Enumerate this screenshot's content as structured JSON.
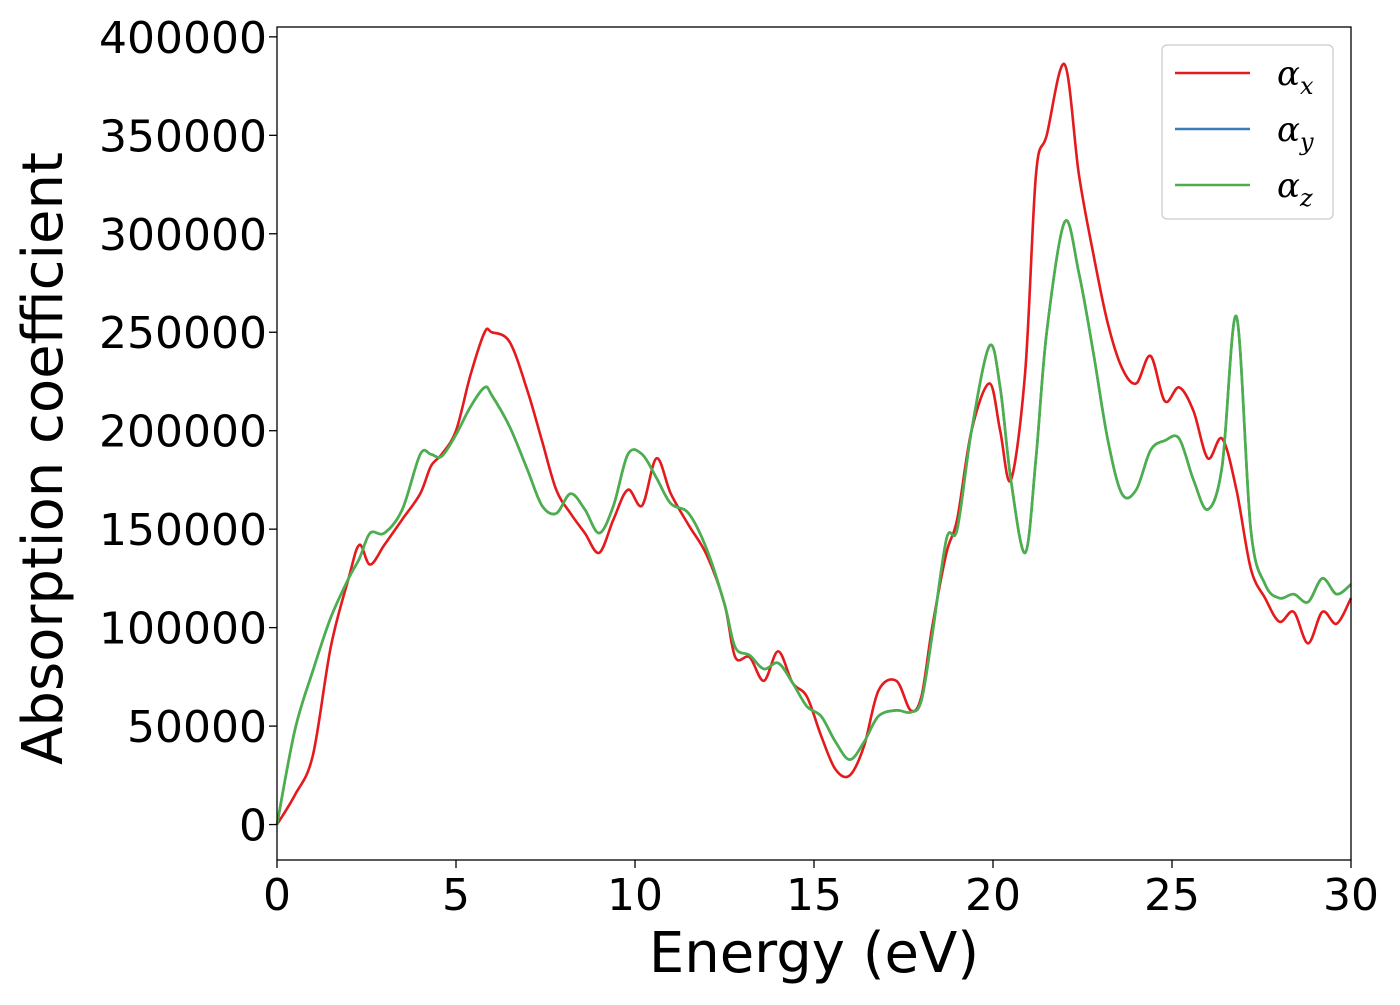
{
  "chart_data": {
    "type": "line",
    "title": "",
    "xlabel": "Energy (eV)",
    "ylabel": "Absorption coefficient",
    "xlim": [
      0,
      30
    ],
    "ylim": [
      -18000,
      405000
    ],
    "xticks": [
      "0",
      "5",
      "10",
      "15",
      "20",
      "25",
      "30"
    ],
    "yticks": [
      "0",
      "50000",
      "100000",
      "150000",
      "200000",
      "250000",
      "300000",
      "350000",
      "400000"
    ],
    "grid": false,
    "legend_position": "top-right",
    "series": [
      {
        "name": "α_x",
        "legend_base": "α",
        "legend_sub": "x",
        "color": "#e41a1c",
        "x": [
          0,
          0.5,
          1,
          1.5,
          2,
          2.3,
          2.6,
          3,
          3.5,
          4,
          4.3,
          4.6,
          5,
          5.4,
          5.8,
          6,
          6.5,
          7,
          7.4,
          7.8,
          8.2,
          8.6,
          9,
          9.4,
          9.8,
          10.2,
          10.6,
          11,
          11.5,
          12,
          12.5,
          12.8,
          13.2,
          13.6,
          14,
          14.4,
          14.8,
          15.2,
          15.6,
          16,
          16.4,
          16.8,
          17.3,
          17.7,
          18,
          18.3,
          18.7,
          19,
          19.4,
          19.9,
          20.2,
          20.5,
          20.9,
          21.2,
          21.5,
          22,
          22.4,
          22.8,
          23.2,
          23.6,
          24,
          24.4,
          24.8,
          25.2,
          25.6,
          26,
          26.4,
          26.8,
          27.2,
          27.6,
          28,
          28.4,
          28.8,
          29.2,
          29.6,
          30
        ],
        "y": [
          0,
          15000,
          35000,
          90000,
          125000,
          142000,
          132000,
          142000,
          155000,
          168000,
          182000,
          188000,
          200000,
          228000,
          250000,
          250000,
          245000,
          220000,
          195000,
          170000,
          158000,
          148000,
          138000,
          155000,
          170000,
          162000,
          186000,
          168000,
          152000,
          137000,
          112000,
          85000,
          85000,
          73000,
          88000,
          72000,
          65000,
          45000,
          28000,
          25000,
          40000,
          68000,
          73000,
          58000,
          65000,
          100000,
          138000,
          155000,
          200000,
          224000,
          200000,
          175000,
          230000,
          330000,
          350000,
          386000,
          330000,
          290000,
          255000,
          232000,
          224000,
          238000,
          215000,
          222000,
          210000,
          186000,
          196000,
          170000,
          130000,
          115000,
          103000,
          108000,
          92000,
          108000,
          102000,
          115000
        ]
      },
      {
        "name": "α_y",
        "legend_base": "α",
        "legend_sub": "y",
        "color": "#377eb8",
        "x": [
          0,
          0.5,
          1,
          1.5,
          2,
          2.3,
          2.6,
          3,
          3.5,
          4,
          4.3,
          4.6,
          5,
          5.4,
          5.8,
          6,
          6.5,
          7,
          7.4,
          7.8,
          8.2,
          8.6,
          9,
          9.4,
          9.8,
          10.2,
          10.6,
          11,
          11.5,
          12,
          12.5,
          12.8,
          13.2,
          13.6,
          14,
          14.4,
          14.8,
          15.2,
          15.6,
          16,
          16.4,
          16.8,
          17.3,
          17.7,
          18,
          18.3,
          18.7,
          19,
          19.4,
          19.9,
          20.2,
          20.5,
          20.9,
          21.2,
          21.5,
          22,
          22.4,
          22.8,
          23.2,
          23.6,
          24,
          24.4,
          24.8,
          25.2,
          25.6,
          26,
          26.4,
          26.8,
          27.2,
          27.6,
          28,
          28.4,
          28.8,
          29.2,
          29.6,
          30
        ],
        "y": [
          0,
          48000,
          78000,
          105000,
          125000,
          135000,
          148000,
          148000,
          160000,
          188000,
          188000,
          187000,
          198000,
          212000,
          222000,
          218000,
          202000,
          180000,
          162000,
          158000,
          168000,
          160000,
          148000,
          162000,
          188000,
          188000,
          176000,
          163000,
          158000,
          140000,
          112000,
          90000,
          86000,
          79000,
          82000,
          72000,
          60000,
          55000,
          42000,
          33000,
          42000,
          55000,
          58000,
          57000,
          63000,
          96000,
          145000,
          150000,
          200000,
          243000,
          222000,
          175000,
          138000,
          186000,
          250000,
          306000,
          280000,
          240000,
          196000,
          168000,
          170000,
          190000,
          195000,
          196000,
          175000,
          160000,
          182000,
          258000,
          150000,
          122000,
          115000,
          117000,
          113000,
          125000,
          117000,
          122000
        ]
      },
      {
        "name": "α_z",
        "legend_base": "α",
        "legend_sub": "z",
        "color": "#4daf4a",
        "x": [
          0,
          0.5,
          1,
          1.5,
          2,
          2.3,
          2.6,
          3,
          3.5,
          4,
          4.3,
          4.6,
          5,
          5.4,
          5.8,
          6,
          6.5,
          7,
          7.4,
          7.8,
          8.2,
          8.6,
          9,
          9.4,
          9.8,
          10.2,
          10.6,
          11,
          11.5,
          12,
          12.5,
          12.8,
          13.2,
          13.6,
          14,
          14.4,
          14.8,
          15.2,
          15.6,
          16,
          16.4,
          16.8,
          17.3,
          17.7,
          18,
          18.3,
          18.7,
          19,
          19.4,
          19.9,
          20.2,
          20.5,
          20.9,
          21.2,
          21.5,
          22,
          22.4,
          22.8,
          23.2,
          23.6,
          24,
          24.4,
          24.8,
          25.2,
          25.6,
          26,
          26.4,
          26.8,
          27.2,
          27.6,
          28,
          28.4,
          28.8,
          29.2,
          29.6,
          30
        ],
        "y": [
          0,
          48000,
          78000,
          105000,
          125000,
          135000,
          148000,
          148000,
          160000,
          188000,
          188000,
          187000,
          198000,
          212000,
          222000,
          218000,
          202000,
          180000,
          162000,
          158000,
          168000,
          160000,
          148000,
          162000,
          188000,
          188000,
          176000,
          163000,
          158000,
          140000,
          112000,
          90000,
          86000,
          79000,
          82000,
          72000,
          60000,
          55000,
          42000,
          33000,
          42000,
          55000,
          58000,
          57000,
          63000,
          96000,
          145000,
          150000,
          200000,
          243000,
          222000,
          175000,
          138000,
          186000,
          250000,
          306000,
          280000,
          240000,
          196000,
          168000,
          170000,
          190000,
          195000,
          196000,
          175000,
          160000,
          182000,
          258000,
          150000,
          122000,
          115000,
          117000,
          113000,
          125000,
          117000,
          122000
        ]
      }
    ]
  }
}
